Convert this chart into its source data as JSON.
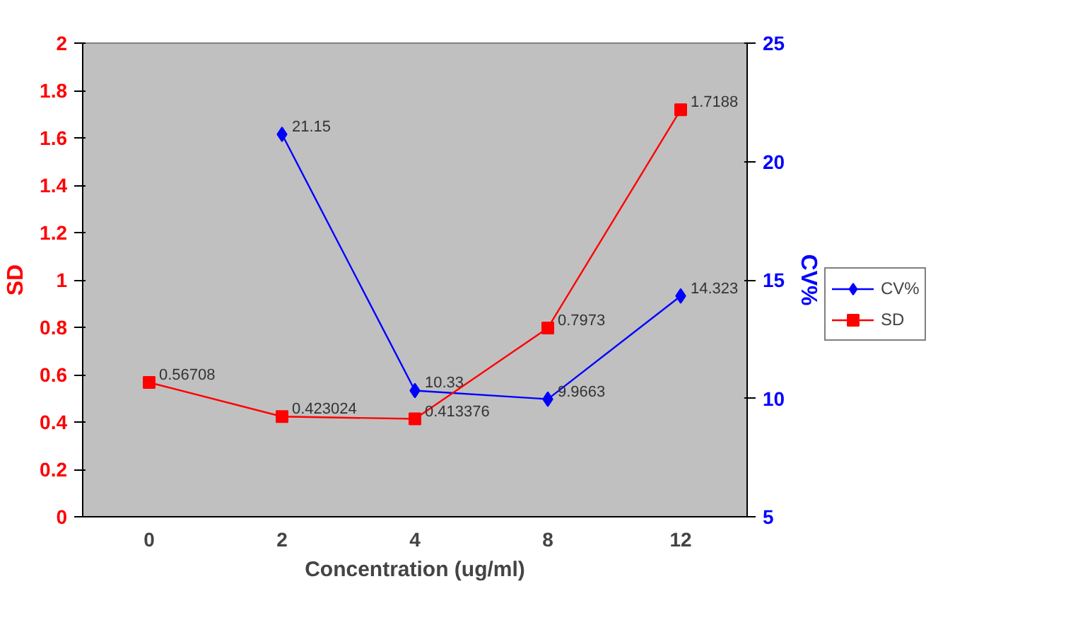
{
  "chart_data": {
    "type": "line",
    "categories": [
      "0",
      "2",
      "4",
      "8",
      "12"
    ],
    "xlabel": "Concentration (ug/ml)",
    "ylabel": "SD",
    "y2label": "CV%",
    "ylim": [
      0,
      2
    ],
    "yticks": [
      0,
      0.2,
      0.4,
      0.6,
      0.8,
      1,
      1.2,
      1.4,
      1.6,
      1.8,
      2
    ],
    "y2lim": [
      5,
      25
    ],
    "y2ticks": [
      5,
      10,
      15,
      20,
      25
    ],
    "series": [
      {
        "name": "CV%",
        "color": "#0000ff",
        "values": [
          null,
          21.15,
          10.33,
          9.9663,
          14.323
        ],
        "axis": "y2",
        "marker": "diamond"
      },
      {
        "name": "SD",
        "color": "#ff0000",
        "values": [
          0.56708,
          0.423024,
          0.413376,
          0.7973,
          1.7188
        ],
        "marker": "square"
      }
    ],
    "data_labels": true,
    "grid": false,
    "legend": "right"
  }
}
